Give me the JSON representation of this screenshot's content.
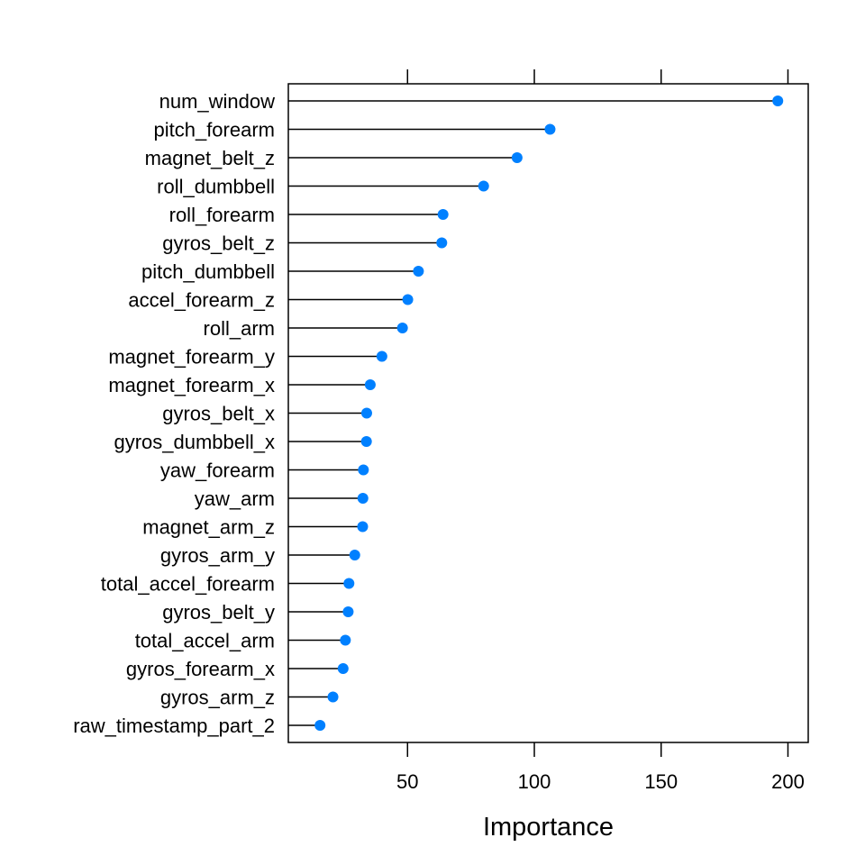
{
  "chart_data": {
    "type": "dotplot",
    "xlabel": "Importance",
    "xlim": [
      3,
      208
    ],
    "xticks": [
      50,
      100,
      150,
      200
    ],
    "xtick_labels": [
      "50",
      "100",
      "150",
      "200"
    ],
    "grid": false,
    "categories": [
      "num_window",
      "pitch_forearm",
      "magnet_belt_z",
      "roll_dumbbell",
      "roll_forearm",
      "gyros_belt_z",
      "pitch_dumbbell",
      "accel_forearm_z",
      "roll_arm",
      "magnet_forearm_y",
      "magnet_forearm_x",
      "gyros_belt_x",
      "gyros_dumbbell_x",
      "yaw_forearm",
      "yaw_arm",
      "magnet_arm_z",
      "gyros_arm_y",
      "total_accel_forearm",
      "gyros_belt_y",
      "total_accel_arm",
      "gyros_forearm_x",
      "gyros_arm_z",
      "raw_timestamp_part_2"
    ],
    "values": [
      196,
      106.2,
      93.2,
      80,
      64,
      63.5,
      54.3,
      50.1,
      48,
      39.9,
      35.3,
      33.9,
      33.8,
      32.6,
      32.4,
      32.3,
      29.2,
      26.9,
      26.6,
      25.5,
      24.6,
      20.6,
      15.5
    ]
  },
  "colors": {
    "point": "#0080ff",
    "stem": "#000000",
    "axis": "#000000"
  }
}
